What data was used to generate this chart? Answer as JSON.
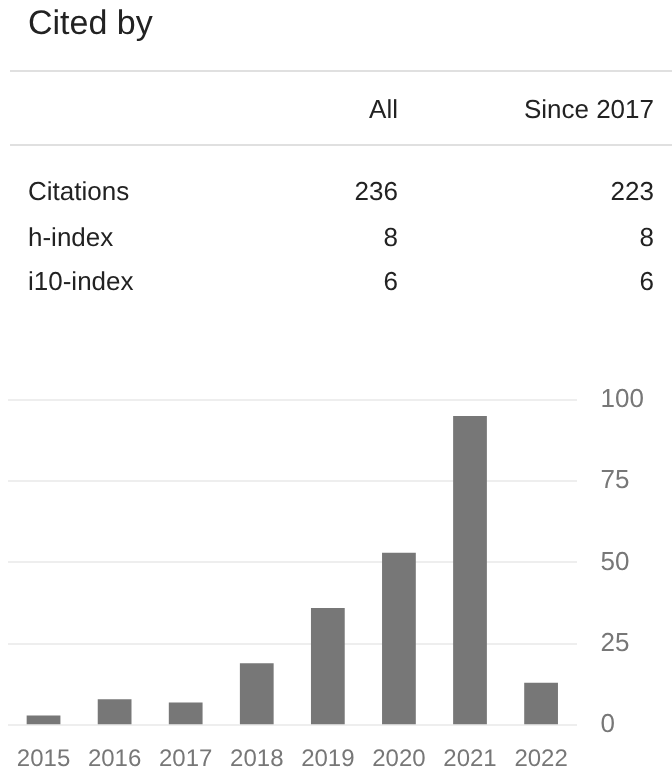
{
  "chart_data": {
    "type": "bar",
    "title": "Cited by",
    "annotations": [
      "All",
      "Since 2017",
      "Citations",
      "236",
      "223",
      "h-index",
      "8",
      "8",
      "i10-index",
      "6",
      "6"
    ],
    "categories": [
      "2015",
      "2016",
      "2017",
      "2018",
      "2019",
      "2020",
      "2021",
      "2022"
    ],
    "values": [
      3,
      8,
      7,
      19,
      36,
      53,
      95,
      13
    ],
    "color": "#777777",
    "ylim": [
      0,
      100
    ],
    "yticks": [
      0,
      25,
      50,
      75,
      100
    ],
    "grid": "y"
  }
}
